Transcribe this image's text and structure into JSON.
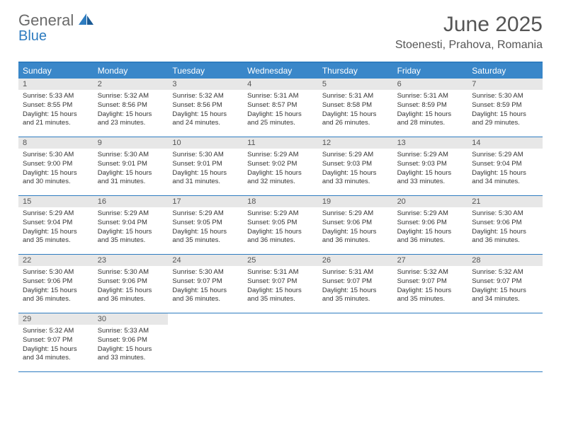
{
  "brand": {
    "line1": "General",
    "line2": "Blue"
  },
  "title": "June 2025",
  "location": "Stoenesti, Prahova, Romania",
  "weekdays": [
    "Sunday",
    "Monday",
    "Tuesday",
    "Wednesday",
    "Thursday",
    "Friday",
    "Saturday"
  ],
  "colors": {
    "header_bar": "#3a87c9",
    "border": "#2e7cc0",
    "daynum_bg": "#e7e7e7",
    "text": "#333333",
    "title": "#555555"
  },
  "weeks": [
    [
      {
        "n": "1",
        "sr": "5:33 AM",
        "ss": "8:55 PM",
        "dl": "15 hours and 21 minutes."
      },
      {
        "n": "2",
        "sr": "5:32 AM",
        "ss": "8:56 PM",
        "dl": "15 hours and 23 minutes."
      },
      {
        "n": "3",
        "sr": "5:32 AM",
        "ss": "8:56 PM",
        "dl": "15 hours and 24 minutes."
      },
      {
        "n": "4",
        "sr": "5:31 AM",
        "ss": "8:57 PM",
        "dl": "15 hours and 25 minutes."
      },
      {
        "n": "5",
        "sr": "5:31 AM",
        "ss": "8:58 PM",
        "dl": "15 hours and 26 minutes."
      },
      {
        "n": "6",
        "sr": "5:31 AM",
        "ss": "8:59 PM",
        "dl": "15 hours and 28 minutes."
      },
      {
        "n": "7",
        "sr": "5:30 AM",
        "ss": "8:59 PM",
        "dl": "15 hours and 29 minutes."
      }
    ],
    [
      {
        "n": "8",
        "sr": "5:30 AM",
        "ss": "9:00 PM",
        "dl": "15 hours and 30 minutes."
      },
      {
        "n": "9",
        "sr": "5:30 AM",
        "ss": "9:01 PM",
        "dl": "15 hours and 31 minutes."
      },
      {
        "n": "10",
        "sr": "5:30 AM",
        "ss": "9:01 PM",
        "dl": "15 hours and 31 minutes."
      },
      {
        "n": "11",
        "sr": "5:29 AM",
        "ss": "9:02 PM",
        "dl": "15 hours and 32 minutes."
      },
      {
        "n": "12",
        "sr": "5:29 AM",
        "ss": "9:03 PM",
        "dl": "15 hours and 33 minutes."
      },
      {
        "n": "13",
        "sr": "5:29 AM",
        "ss": "9:03 PM",
        "dl": "15 hours and 33 minutes."
      },
      {
        "n": "14",
        "sr": "5:29 AM",
        "ss": "9:04 PM",
        "dl": "15 hours and 34 minutes."
      }
    ],
    [
      {
        "n": "15",
        "sr": "5:29 AM",
        "ss": "9:04 PM",
        "dl": "15 hours and 35 minutes."
      },
      {
        "n": "16",
        "sr": "5:29 AM",
        "ss": "9:04 PM",
        "dl": "15 hours and 35 minutes."
      },
      {
        "n": "17",
        "sr": "5:29 AM",
        "ss": "9:05 PM",
        "dl": "15 hours and 35 minutes."
      },
      {
        "n": "18",
        "sr": "5:29 AM",
        "ss": "9:05 PM",
        "dl": "15 hours and 36 minutes."
      },
      {
        "n": "19",
        "sr": "5:29 AM",
        "ss": "9:06 PM",
        "dl": "15 hours and 36 minutes."
      },
      {
        "n": "20",
        "sr": "5:29 AM",
        "ss": "9:06 PM",
        "dl": "15 hours and 36 minutes."
      },
      {
        "n": "21",
        "sr": "5:30 AM",
        "ss": "9:06 PM",
        "dl": "15 hours and 36 minutes."
      }
    ],
    [
      {
        "n": "22",
        "sr": "5:30 AM",
        "ss": "9:06 PM",
        "dl": "15 hours and 36 minutes."
      },
      {
        "n": "23",
        "sr": "5:30 AM",
        "ss": "9:06 PM",
        "dl": "15 hours and 36 minutes."
      },
      {
        "n": "24",
        "sr": "5:30 AM",
        "ss": "9:07 PM",
        "dl": "15 hours and 36 minutes."
      },
      {
        "n": "25",
        "sr": "5:31 AM",
        "ss": "9:07 PM",
        "dl": "15 hours and 35 minutes."
      },
      {
        "n": "26",
        "sr": "5:31 AM",
        "ss": "9:07 PM",
        "dl": "15 hours and 35 minutes."
      },
      {
        "n": "27",
        "sr": "5:32 AM",
        "ss": "9:07 PM",
        "dl": "15 hours and 35 minutes."
      },
      {
        "n": "28",
        "sr": "5:32 AM",
        "ss": "9:07 PM",
        "dl": "15 hours and 34 minutes."
      }
    ],
    [
      {
        "n": "29",
        "sr": "5:32 AM",
        "ss": "9:07 PM",
        "dl": "15 hours and 34 minutes."
      },
      {
        "n": "30",
        "sr": "5:33 AM",
        "ss": "9:06 PM",
        "dl": "15 hours and 33 minutes."
      },
      null,
      null,
      null,
      null,
      null
    ]
  ],
  "labels": {
    "sunrise": "Sunrise:",
    "sunset": "Sunset:",
    "daylight": "Daylight:"
  }
}
